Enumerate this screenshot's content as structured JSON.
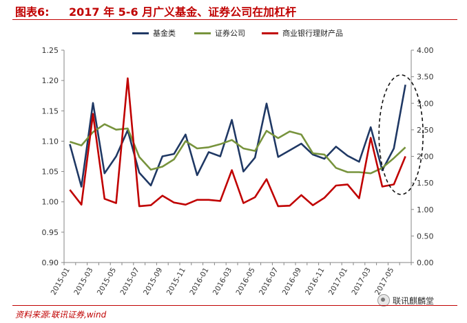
{
  "header": {
    "label": "图表6:",
    "title": "2017 年 5-6 月广义基金、证券公司在加杠杆"
  },
  "source": "资料来源:联讯证券,wind",
  "watermark": "联讯麒麟堂",
  "colors": {
    "series_fund": "#1f3864",
    "series_securities": "#77933c",
    "series_bank": "#c00000",
    "title": "#c00000",
    "axis": "#868686"
  },
  "chart_data": {
    "type": "line",
    "x": [
      "2015-01",
      "2015-02",
      "2015-03",
      "2015-04",
      "2015-05",
      "2015-06",
      "2015-07",
      "2015-08",
      "2015-09",
      "2015-10",
      "2015-11",
      "2015-12",
      "2016-01",
      "2016-02",
      "2016-03",
      "2016-04",
      "2016-05",
      "2016-06",
      "2016-07",
      "2016-08",
      "2016-09",
      "2016-10",
      "2016-11",
      "2016-12",
      "2017-01",
      "2017-02",
      "2017-03",
      "2017-04",
      "2017-05",
      "2017-06"
    ],
    "x_tick_labels": [
      "2015-01",
      "2015-03",
      "2015-05",
      "2015-07",
      "2015-09",
      "2015-11",
      "2016-01",
      "2016-03",
      "2016-05",
      "2016-07",
      "2016-09",
      "2016-11",
      "2017-01",
      "2017-03",
      "2017-05"
    ],
    "left_axis": {
      "ylim": [
        0.9,
        1.25
      ],
      "ticks": [
        "0.90",
        "0.95",
        "1.00",
        "1.05",
        "1.10",
        "1.15",
        "1.20",
        "1.25"
      ]
    },
    "right_axis": {
      "ylim": [
        0.0,
        4.0
      ],
      "ticks": [
        "0.00",
        "0.50",
        "1.00",
        "1.50",
        "2.00",
        "2.50",
        "3.00",
        "3.50",
        "4.00"
      ]
    },
    "series": [
      {
        "name": "基金类",
        "axis": "left",
        "color": "#1f3864",
        "values": [
          1.095,
          1.025,
          1.163,
          1.047,
          1.075,
          1.118,
          1.048,
          1.027,
          1.075,
          1.079,
          1.111,
          1.044,
          1.082,
          1.075,
          1.135,
          1.05,
          1.073,
          1.162,
          1.074,
          1.085,
          1.096,
          1.078,
          1.071,
          1.091,
          1.076,
          1.066,
          1.123,
          1.052,
          1.088,
          1.193
        ]
      },
      {
        "name": "证券公司",
        "axis": "left",
        "color": "#77933c",
        "values": [
          1.099,
          1.093,
          1.115,
          1.128,
          1.119,
          1.121,
          1.074,
          1.053,
          1.058,
          1.07,
          1.1,
          1.088,
          1.09,
          1.095,
          1.102,
          1.088,
          1.084,
          1.117,
          1.105,
          1.116,
          1.111,
          1.08,
          1.078,
          1.056,
          1.049,
          1.049,
          1.047,
          1.056,
          1.072,
          1.09
        ]
      },
      {
        "name": "商业银行理财产品",
        "axis": "right",
        "color": "#c00000",
        "values": [
          1.37,
          1.09,
          2.8,
          1.2,
          1.12,
          3.47,
          1.06,
          1.08,
          1.26,
          1.13,
          1.09,
          1.18,
          1.18,
          1.16,
          1.74,
          1.12,
          1.23,
          1.57,
          1.06,
          1.07,
          1.27,
          1.08,
          1.22,
          1.45,
          1.47,
          1.21,
          2.35,
          1.43,
          1.47,
          2.0
        ]
      }
    ],
    "annotation": "dashed ellipse highlighting 2017-05 to 2017-06"
  }
}
